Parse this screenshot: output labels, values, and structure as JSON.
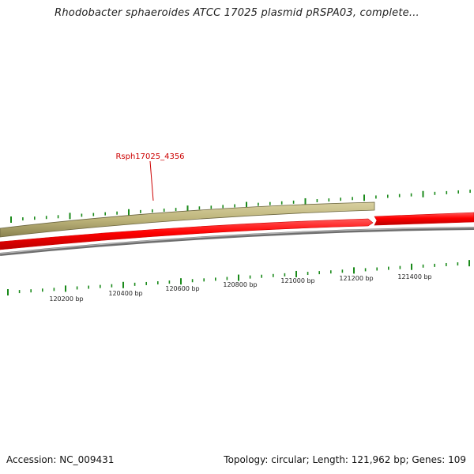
{
  "title": "Rhodobacter sphaeroides ATCC 17025 plasmid pRSPA03, complete...",
  "gene_label": "Rsph17025_4356",
  "ruler": {
    "unit": "bp",
    "ticks": [
      {
        "value": 120200,
        "label": "120200 bp"
      },
      {
        "value": 120400,
        "label": "120400 bp"
      },
      {
        "value": 120600,
        "label": "120600 bp"
      },
      {
        "value": 120800,
        "label": "120800 bp"
      },
      {
        "value": 121000,
        "label": "121000 bp"
      },
      {
        "value": 121200,
        "label": "121200 bp"
      },
      {
        "value": 121400,
        "label": "121400 bp"
      }
    ]
  },
  "features": [
    {
      "name": "Rsph17025_4356",
      "track": "forward",
      "color": "#bdb47a"
    },
    {
      "name": "",
      "track": "cds",
      "color": "#ff0000"
    },
    {
      "name": "",
      "track": "cds",
      "color": "#ff0000"
    }
  ],
  "colors": {
    "gene": "#bdb47a",
    "cds": "#ff0000",
    "backbone": "#8c8c8c",
    "gc_skew": "#1a8a1a",
    "label": "#cc0000"
  },
  "footer": {
    "accession": "Accession: NC_009431",
    "stats": "Topology: circular; Length: 121,962 bp; Genes: 109"
  }
}
